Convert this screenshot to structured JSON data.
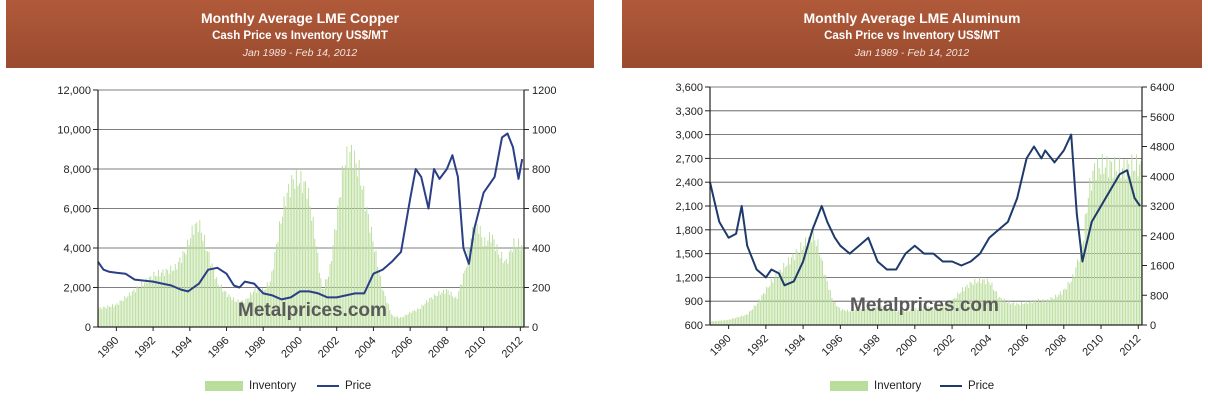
{
  "colors": {
    "banner": "#9a4a2e",
    "inventory": "#b9dd9a",
    "price_copper": "#2a3f86",
    "price_aluminum": "#1e3a6b"
  },
  "chart_data": [
    {
      "type": "line",
      "title": "Monthly Average LME Copper",
      "subtitle": "Cash Price vs Inventory US$/MT",
      "date_range": "Jan 1989 - Feb 14, 2012",
      "watermark": "Metalprices.com",
      "x_ticks": [
        "1990",
        "1992",
        "1994",
        "1996",
        "1998",
        "2000",
        "2002",
        "2004",
        "2006",
        "2008",
        "2010",
        "2012"
      ],
      "left_axis": {
        "ticks": [
          "0",
          "2,000",
          "4,000",
          "6,000",
          "8,000",
          "10,000",
          "12,000"
        ],
        "ylim": [
          0,
          12000
        ]
      },
      "right_axis": {
        "ticks": [
          "0",
          "200",
          "400",
          "600",
          "800",
          "1000",
          "1200"
        ],
        "ylim": [
          0,
          1200
        ]
      },
      "xlim": [
        1989.0,
        2012.2
      ],
      "legend": [
        "Inventory",
        "Price"
      ],
      "legend_position": "bottom",
      "series": [
        {
          "name": "Price",
          "axis": "left",
          "x": [
            1989.0,
            1989.3,
            1989.6,
            1990.0,
            1990.5,
            1991.0,
            1991.5,
            1992.0,
            1992.5,
            1993.0,
            1993.5,
            1993.9,
            1994.5,
            1995.0,
            1995.5,
            1996.0,
            1996.4,
            1996.7,
            1997.0,
            1997.5,
            1998.0,
            1998.5,
            1999.0,
            1999.5,
            2000.0,
            2000.5,
            2001.0,
            2001.5,
            2002.0,
            2002.5,
            2003.0,
            2003.5,
            2004.0,
            2004.5,
            2005.0,
            2005.5,
            2006.0,
            2006.3,
            2006.6,
            2007.0,
            2007.3,
            2007.6,
            2008.0,
            2008.3,
            2008.6,
            2008.9,
            2009.2,
            2009.5,
            2010.0,
            2010.3,
            2010.6,
            2011.0,
            2011.3,
            2011.6,
            2011.9,
            2012.1
          ],
          "values": [
            3300,
            2900,
            2800,
            2750,
            2700,
            2400,
            2350,
            2300,
            2200,
            2100,
            1900,
            1800,
            2200,
            2900,
            3000,
            2700,
            2100,
            2000,
            2300,
            2200,
            1700,
            1600,
            1400,
            1500,
            1800,
            1800,
            1700,
            1500,
            1500,
            1600,
            1700,
            1700,
            2700,
            2900,
            3300,
            3800,
            6500,
            8000,
            7600,
            6000,
            8000,
            7500,
            8000,
            8700,
            7600,
            4000,
            3200,
            5000,
            6800,
            7200,
            7600,
            9600,
            9800,
            9100,
            7500,
            8500
          ]
        },
        {
          "name": "Inventory",
          "axis": "right",
          "x": [
            1989.0,
            1990.0,
            1991.0,
            1992.0,
            1992.6,
            1993.2,
            1993.8,
            1994.2,
            1994.5,
            1995.0,
            1995.5,
            1996.0,
            1996.5,
            1997.0,
            1997.5,
            1998.0,
            1998.4,
            1998.8,
            1999.2,
            1999.6,
            2000.0,
            2000.4,
            2000.8,
            2001.2,
            2001.6,
            2002.0,
            2002.4,
            2002.8,
            2003.2,
            2003.6,
            2004.0,
            2004.5,
            2005.0,
            2005.5,
            2006.0,
            2006.5,
            2007.0,
            2007.5,
            2008.0,
            2008.5,
            2009.0,
            2009.3,
            2009.7,
            2010.0,
            2010.4,
            2010.8,
            2011.2,
            2011.6,
            2012.0,
            2012.2
          ],
          "values": [
            100,
            120,
            200,
            280,
            300,
            320,
            420,
            540,
            560,
            400,
            240,
            180,
            140,
            140,
            200,
            200,
            250,
            500,
            700,
            800,
            800,
            750,
            500,
            200,
            300,
            600,
            900,
            950,
            850,
            650,
            450,
            200,
            60,
            50,
            80,
            100,
            150,
            180,
            200,
            150,
            320,
            500,
            550,
            450,
            500,
            400,
            350,
            450,
            450,
            400
          ]
        }
      ]
    },
    {
      "type": "line",
      "title": "Monthly Average LME Aluminum",
      "subtitle": "Cash Price vs Inventory US$/MT",
      "date_range": "Jan 1989 - Feb 14, 2012",
      "watermark": "Metalprices.com",
      "x_ticks": [
        "1990",
        "1992",
        "1994",
        "1996",
        "1998",
        "2000",
        "2002",
        "2004",
        "2006",
        "2008",
        "2010",
        "2012"
      ],
      "left_axis": {
        "ticks": [
          "600",
          "900",
          "1,200",
          "1,500",
          "1,800",
          "2,100",
          "2,400",
          "2,700",
          "3,000",
          "3,300",
          "3,600"
        ],
        "ylim": [
          600,
          3600
        ]
      },
      "right_axis": {
        "ticks": [
          "0",
          "800",
          "1600",
          "2400",
          "3200",
          "4000",
          "4800",
          "5600",
          "6400"
        ],
        "ylim": [
          0,
          6400
        ]
      },
      "xlim": [
        1989.0,
        2012.2
      ],
      "legend": [
        "Inventory",
        "Price"
      ],
      "legend_position": "bottom",
      "series": [
        {
          "name": "Price",
          "axis": "left",
          "x": [
            1989.0,
            1989.2,
            1989.5,
            1990.0,
            1990.4,
            1990.7,
            1991.0,
            1991.5,
            1992.0,
            1992.3,
            1992.7,
            1993.0,
            1993.5,
            1994.0,
            1994.5,
            1995.0,
            1995.3,
            1995.7,
            1996.0,
            1996.5,
            1997.0,
            1997.5,
            1998.0,
            1998.5,
            1999.0,
            1999.5,
            2000.0,
            2000.5,
            2001.0,
            2001.5,
            2002.0,
            2002.5,
            2003.0,
            2003.5,
            2004.0,
            2004.5,
            2005.0,
            2005.5,
            2006.0,
            2006.4,
            2006.8,
            2007.0,
            2007.5,
            2008.0,
            2008.4,
            2008.7,
            2009.0,
            2009.5,
            2010.0,
            2010.5,
            2011.0,
            2011.4,
            2011.8,
            2012.1
          ],
          "values": [
            2400,
            2200,
            1900,
            1700,
            1750,
            2100,
            1600,
            1300,
            1200,
            1300,
            1250,
            1100,
            1150,
            1400,
            1800,
            2100,
            1900,
            1700,
            1600,
            1500,
            1600,
            1700,
            1400,
            1300,
            1300,
            1500,
            1600,
            1500,
            1500,
            1400,
            1400,
            1350,
            1400,
            1500,
            1700,
            1800,
            1900,
            2200,
            2700,
            2850,
            2700,
            2800,
            2650,
            2800,
            3000,
            2000,
            1400,
            1900,
            2100,
            2300,
            2500,
            2550,
            2200,
            2100
          ]
        },
        {
          "name": "Inventory",
          "axis": "right",
          "x": [
            1989.0,
            1990.0,
            1991.0,
            1991.5,
            1992.0,
            1992.5,
            1993.0,
            1993.5,
            1994.0,
            1994.5,
            1994.8,
            1995.2,
            1995.6,
            1996.0,
            1996.5,
            1997.0,
            1997.5,
            1998.0,
            1998.5,
            1999.0,
            1999.5,
            2000.0,
            2000.5,
            2001.0,
            2001.5,
            2002.0,
            2002.5,
            2003.0,
            2003.5,
            2004.0,
            2004.5,
            2005.0,
            2005.5,
            2006.0,
            2006.5,
            2007.0,
            2007.5,
            2008.0,
            2008.5,
            2009.0,
            2009.3,
            2009.6,
            2010.0,
            2010.5,
            2011.0,
            2011.5,
            2012.0,
            2012.2
          ],
          "values": [
            100,
            150,
            300,
            600,
            1000,
            1400,
            1700,
            2000,
            2300,
            2600,
            2300,
            1400,
            700,
            450,
            400,
            450,
            500,
            500,
            500,
            400,
            400,
            450,
            500,
            500,
            550,
            700,
            1000,
            1200,
            1300,
            1250,
            800,
            650,
            600,
            650,
            700,
            700,
            800,
            1000,
            1400,
            2400,
            3800,
            4500,
            4600,
            4600,
            4500,
            4600,
            4600,
            4500
          ]
        }
      ]
    }
  ]
}
